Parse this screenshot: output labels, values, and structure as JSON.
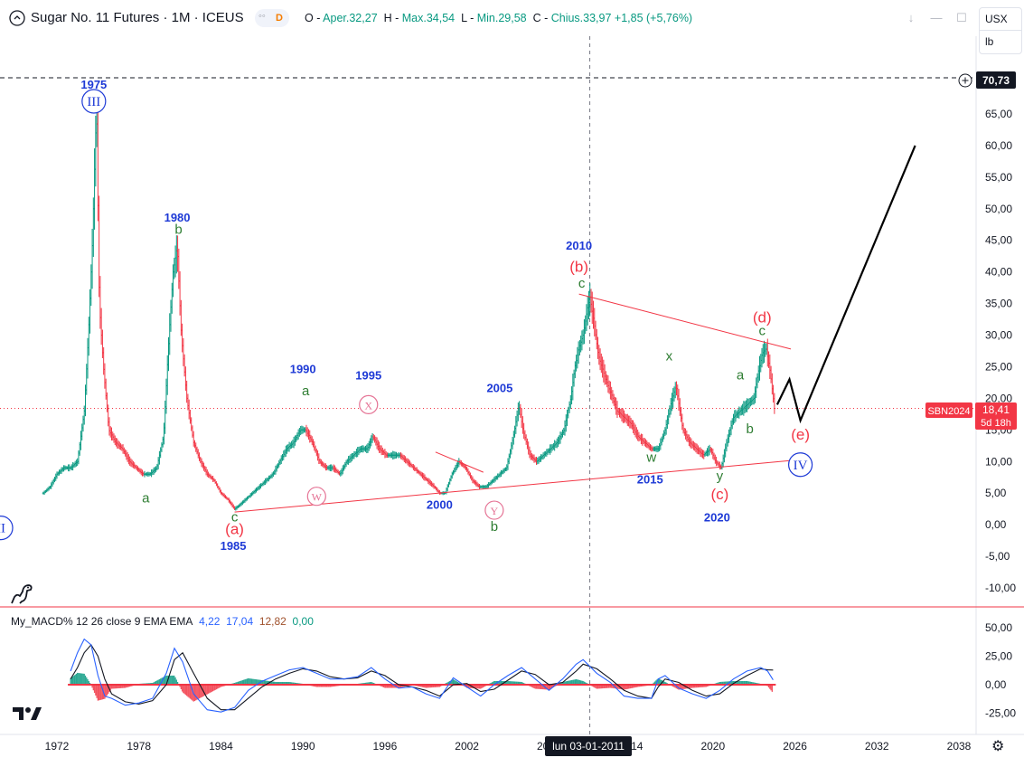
{
  "header": {
    "symbol_title": "Sugar No. 11 Futures · 1M · ICEUS",
    "delay_badge": "D",
    "ohlc": {
      "o_label": "O",
      "o_value": "Aper.32,27",
      "h_label": "H",
      "h_value": "Max.34,54",
      "l_label": "L",
      "l_value": "Min.29,58",
      "c_label": "C",
      "c_value": "Chius.33,97",
      "change": "+1,85 (+5,76%)"
    },
    "currency": "USX",
    "unit": "lb"
  },
  "price_axis": {
    "marker_value": "70,73",
    "last_price_symbol": "SBN2024",
    "last_price_value": "18,41",
    "last_price_countdown": "5d 18h"
  },
  "macd_panel": {
    "label": "My_MACD% 12 26 close 9 EMA EMA",
    "values": [
      "4,22",
      "17,04",
      "12,82",
      "0,00"
    ],
    "value_colors": [
      "#2962ff",
      "#2962ff",
      "#ff6d00",
      "#089981"
    ]
  },
  "crosshair": {
    "date_label": "lun 03-01-2011"
  },
  "colors": {
    "up": "#089981",
    "down": "#f23645",
    "wave_red": "#f23645",
    "wave_blue": "#1e3ad6",
    "wave_green": "#2e7d32",
    "wave_pink": "#e57395",
    "macd_line": "#2962ff",
    "signal_line": "#131722",
    "forecast": "#000000"
  },
  "chart_data": [
    {
      "type": "line",
      "title": "Sugar No. 11 Futures · 1M · ICEUS",
      "y_ticks": [
        "65,00",
        "60,00",
        "55,00",
        "50,00",
        "45,00",
        "40,00",
        "35,00",
        "30,00",
        "25,00",
        "20,00",
        "15,00",
        "10,00",
        "5,00",
        "0,00",
        "-5,00",
        "-10,00"
      ],
      "y_tick_values": [
        65,
        60,
        55,
        50,
        45,
        40,
        35,
        30,
        25,
        20,
        15,
        10,
        5,
        0,
        -5,
        -10
      ],
      "x_ticks": [
        "1972",
        "1978",
        "1984",
        "1990",
        "1996",
        "2002",
        "2008",
        "2014",
        "2020",
        "2026",
        "2032",
        "2038"
      ],
      "x_tick_values": [
        1972,
        1978,
        1984,
        1990,
        1996,
        2002,
        2008,
        2014,
        2020,
        2026,
        2032,
        2038
      ],
      "xlim": [
        1967.5,
        2039.5
      ],
      "ylim": [
        -12,
        75
      ],
      "grid": false,
      "series": [
        {
          "x": [
            1971.0,
            1971.5,
            1972.0,
            1972.5,
            1973.0,
            1973.5,
            1974.0,
            1974.3,
            1974.6,
            1974.8,
            1974.9,
            1975.1,
            1975.4,
            1975.8,
            1976.3,
            1976.8,
            1977.3,
            1977.8,
            1978.3,
            1978.8,
            1979.3,
            1979.8,
            1980.2,
            1980.5,
            1980.8,
            1981.1,
            1981.5,
            1982.0,
            1982.5,
            1983.0,
            1983.5,
            1984.0,
            1984.5,
            1985.0,
            1985.3,
            1985.8,
            1986.3,
            1986.8,
            1987.3,
            1987.8,
            1988.3,
            1988.8,
            1989.3,
            1989.8,
            1990.2,
            1990.7,
            1991.2,
            1991.7,
            1992.2,
            1992.7,
            1993.2,
            1993.7,
            1994.2,
            1994.7,
            1995.1,
            1995.6,
            1996.1,
            1996.6,
            1997.1,
            1997.6,
            1998.1,
            1998.6,
            1999.1,
            1999.6,
            2000.0,
            2000.4,
            2000.9,
            2001.4,
            2001.9,
            2002.4,
            2002.9,
            2003.4,
            2003.9,
            2004.4,
            2004.9,
            2005.4,
            2005.8,
            2006.1,
            2006.6,
            2007.1,
            2007.6,
            2008.1,
            2008.6,
            2009.1,
            2009.6,
            2009.9,
            2010.2,
            2010.5,
            2010.8,
            2011.0,
            2011.3,
            2011.6,
            2012.0,
            2012.5,
            2013.0,
            2013.5,
            2014.0,
            2014.5,
            2015.0,
            2015.5,
            2016.0,
            2016.5,
            2016.9,
            2017.3,
            2017.8,
            2018.3,
            2018.8,
            2019.3,
            2019.8,
            2020.2,
            2020.6,
            2021.0,
            2021.5,
            2022.0,
            2022.5,
            2023.0,
            2023.3,
            2023.6,
            2023.9,
            2024.2,
            2024.5
          ],
          "values": [
            5,
            6,
            8,
            9,
            9,
            10,
            18,
            30,
            45,
            60,
            66,
            35,
            25,
            15,
            13,
            12,
            10,
            9,
            8,
            8,
            9,
            14,
            30,
            40,
            44,
            30,
            20,
            13,
            10,
            8,
            7,
            5,
            4,
            2.5,
            3,
            4,
            5,
            6,
            7,
            8,
            10,
            12,
            13,
            15,
            15,
            13,
            10,
            9,
            9,
            8,
            10,
            11,
            12,
            12,
            14,
            12,
            11,
            11,
            11,
            10,
            9,
            8,
            7,
            6,
            5,
            5,
            8,
            10,
            9,
            7,
            6,
            6,
            7,
            8,
            9,
            14,
            19,
            15,
            11,
            10,
            11,
            12,
            13,
            15,
            20,
            25,
            28,
            30,
            34,
            36,
            32,
            27,
            24,
            21,
            18,
            17,
            16,
            14,
            13,
            12,
            12,
            15,
            19,
            22,
            15,
            13,
            12,
            11,
            12,
            10,
            9,
            13,
            17,
            18,
            19,
            20,
            24,
            27,
            28,
            24,
            18.4
          ]
        },
        {
          "name": "forecast",
          "x": [
            2024.7,
            2025.6,
            2026.4,
            2034.8
          ],
          "values": [
            19,
            23,
            16.5,
            60
          ]
        }
      ],
      "annotations": [
        {
          "text": "1975",
          "x": 1974.7,
          "y": 69,
          "color": "blue"
        },
        {
          "text": "III",
          "x": 1974.7,
          "y": 67,
          "color": "blue",
          "shape": "circle"
        },
        {
          "text": "1980",
          "x": 1980.8,
          "y": 48,
          "color": "blue"
        },
        {
          "text": "b",
          "x": 1980.9,
          "y": 46,
          "color": "green"
        },
        {
          "text": "a",
          "x": 1978.5,
          "y": 3.5,
          "color": "green"
        },
        {
          "text": "c",
          "x": 1985.0,
          "y": 0.5,
          "color": "green"
        },
        {
          "text": "(a)",
          "x": 1985.0,
          "y": -1.5,
          "color": "red"
        },
        {
          "text": "1985",
          "x": 1984.9,
          "y": -4,
          "color": "blue"
        },
        {
          "text": "1990",
          "x": 1990.0,
          "y": 24,
          "color": "blue"
        },
        {
          "text": "a",
          "x": 1990.2,
          "y": 20.5,
          "color": "green"
        },
        {
          "text": "W",
          "x": 1991.0,
          "y": 4.5,
          "color": "pink",
          "shape": "circle"
        },
        {
          "text": "1995",
          "x": 1994.8,
          "y": 23,
          "color": "blue"
        },
        {
          "text": "X",
          "x": 1994.8,
          "y": 19,
          "color": "pink",
          "shape": "circle"
        },
        {
          "text": "2000",
          "x": 2000.0,
          "y": 2.5,
          "color": "blue"
        },
        {
          "text": "Y",
          "x": 2004.0,
          "y": 2.3,
          "color": "pink",
          "shape": "circle"
        },
        {
          "text": "b",
          "x": 2004.0,
          "y": -1,
          "color": "green"
        },
        {
          "text": "2005",
          "x": 2004.4,
          "y": 21,
          "color": "blue"
        },
        {
          "text": "2010",
          "x": 2010.2,
          "y": 43.5,
          "color": "blue"
        },
        {
          "text": "(b)",
          "x": 2010.2,
          "y": 40,
          "color": "red"
        },
        {
          "text": "c",
          "x": 2010.4,
          "y": 37.5,
          "color": "green"
        },
        {
          "text": "x",
          "x": 2016.8,
          "y": 26,
          "color": "green"
        },
        {
          "text": "w",
          "x": 2015.5,
          "y": 10,
          "color": "green"
        },
        {
          "text": "2015",
          "x": 2015.4,
          "y": 6.5,
          "color": "blue"
        },
        {
          "text": "y",
          "x": 2020.5,
          "y": 7,
          "color": "green"
        },
        {
          "text": "(c)",
          "x": 2020.5,
          "y": 4,
          "color": "red"
        },
        {
          "text": "2020",
          "x": 2020.3,
          "y": 0.5,
          "color": "blue"
        },
        {
          "text": "a",
          "x": 2022.0,
          "y": 23,
          "color": "green"
        },
        {
          "text": "b",
          "x": 2022.7,
          "y": 14.5,
          "color": "green"
        },
        {
          "text": "(d)",
          "x": 2023.6,
          "y": 32,
          "color": "red"
        },
        {
          "text": "c",
          "x": 2023.6,
          "y": 30,
          "color": "green"
        },
        {
          "text": "(e)",
          "x": 2026.4,
          "y": 13.5,
          "color": "red"
        },
        {
          "text": "IV",
          "x": 2026.4,
          "y": 9.5,
          "color": "blue",
          "shape": "circle"
        },
        {
          "text": "II",
          "x": 1967.9,
          "y": -0.5,
          "color": "blue",
          "shape": "circle"
        }
      ],
      "trendlines": [
        {
          "x1": 1985.0,
          "y1": 2.0,
          "x2": 2025.9,
          "y2": 10.2,
          "color": "red"
        },
        {
          "x1": 2010.2,
          "y1": 36.5,
          "x2": 2025.7,
          "y2": 27.8,
          "color": "red"
        },
        {
          "x1": 1999.7,
          "y1": 11.5,
          "x2": 2003.2,
          "y2": 8.3,
          "color": "red"
        }
      ],
      "hlines": [
        {
          "y": 70.73,
          "style": "dashed",
          "color": "black"
        },
        {
          "y": 18.41,
          "style": "dotted",
          "color": "red"
        }
      ]
    },
    {
      "type": "line",
      "title": "My_MACD% 12 26 close 9 EMA EMA",
      "y_ticks": [
        "50,00",
        "25,00",
        "0,00",
        "-25,00"
      ],
      "y_tick_values": [
        50,
        25,
        0,
        -25
      ],
      "ylim": [
        -33,
        62
      ],
      "series": [
        {
          "name": "MACD",
          "x": [
            1973.0,
            1973.5,
            1974.0,
            1974.5,
            1975.0,
            1975.5,
            1976.0,
            1977.0,
            1978.0,
            1979.0,
            1980.0,
            1980.6,
            1981.2,
            1982.0,
            1983.0,
            1984.0,
            1985.0,
            1986.0,
            1987.0,
            1988.0,
            1989.0,
            1990.0,
            1991.0,
            1992.0,
            1993.0,
            1994.0,
            1995.0,
            1996.0,
            1997.0,
            1998.0,
            1999.0,
            2000.0,
            2001.0,
            2002.0,
            2003.0,
            2004.0,
            2005.0,
            2006.0,
            2007.0,
            2008.0,
            2009.0,
            2010.0,
            2010.5,
            2011.5,
            2012.5,
            2013.5,
            2014.5,
            2015.5,
            2016.0,
            2016.5,
            2017.5,
            2018.5,
            2019.5,
            2020.5,
            2021.5,
            2022.5,
            2023.5,
            2024.0,
            2024.4
          ],
          "values": [
            12,
            28,
            40,
            35,
            8,
            -10,
            -12,
            -18,
            -16,
            -12,
            10,
            32,
            20,
            -8,
            -22,
            -24,
            -20,
            -5,
            3,
            8,
            13,
            15,
            10,
            5,
            5,
            7,
            15,
            5,
            -3,
            -2,
            -8,
            -12,
            6,
            -2,
            -10,
            0,
            8,
            15,
            5,
            -5,
            5,
            18,
            22,
            10,
            2,
            -10,
            -12,
            -12,
            5,
            8,
            -3,
            -8,
            -12,
            -5,
            5,
            12,
            15,
            12,
            4.22
          ]
        },
        {
          "name": "signal",
          "x": [
            1973.0,
            1973.5,
            1974.0,
            1974.5,
            1975.0,
            1975.5,
            1976.0,
            1977.0,
            1978.0,
            1979.0,
            1980.0,
            1980.6,
            1981.2,
            1982.0,
            1983.0,
            1984.0,
            1985.0,
            1986.0,
            1987.0,
            1988.0,
            1989.0,
            1990.0,
            1991.0,
            1992.0,
            1993.0,
            1994.0,
            1995.0,
            1996.0,
            1997.0,
            1998.0,
            1999.0,
            2000.0,
            2001.0,
            2002.0,
            2003.0,
            2004.0,
            2005.0,
            2006.0,
            2007.0,
            2008.0,
            2009.0,
            2010.0,
            2010.5,
            2011.5,
            2012.5,
            2013.5,
            2014.5,
            2015.5,
            2016.0,
            2016.5,
            2017.5,
            2018.5,
            2019.5,
            2020.5,
            2021.5,
            2022.5,
            2023.5,
            2024.0,
            2024.4
          ],
          "values": [
            5,
            15,
            28,
            35,
            25,
            5,
            -8,
            -15,
            -17,
            -14,
            0,
            22,
            28,
            10,
            -12,
            -22,
            -22,
            -12,
            -2,
            5,
            10,
            14,
            12,
            7,
            5,
            6,
            12,
            8,
            0,
            -2,
            -5,
            -10,
            0,
            1,
            -6,
            -4,
            4,
            12,
            9,
            0,
            2,
            12,
            18,
            14,
            5,
            -5,
            -10,
            -12,
            -2,
            5,
            2,
            -5,
            -10,
            -8,
            1,
            8,
            14,
            13,
            12.82
          ]
        }
      ],
      "histogram_note": "red/green bars around zero",
      "zero_line_color": "red"
    }
  ]
}
